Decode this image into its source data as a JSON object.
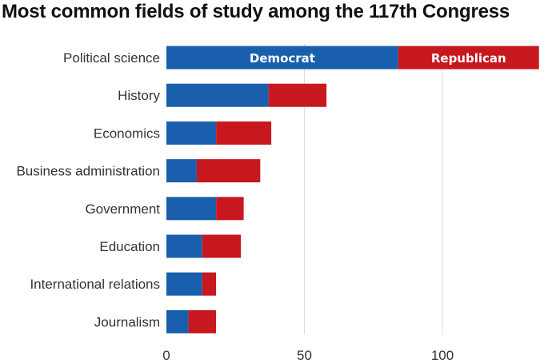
{
  "chart_data": {
    "type": "bar",
    "orientation": "horizontal",
    "stacked": true,
    "title": "Most common fields of study among the 117th Congress",
    "xlabel": "",
    "ylabel": "",
    "categories": [
      "Political science",
      "History",
      "Economics",
      "Business administration",
      "Government",
      "Education",
      "International relations",
      "Journalism"
    ],
    "series": [
      {
        "name": "Democrat",
        "color": "#1a5fad",
        "values": [
          84,
          37,
          18,
          11,
          18,
          13,
          13,
          8
        ]
      },
      {
        "name": "Republican",
        "color": "#c8181f",
        "values": [
          51,
          21,
          20,
          23,
          10,
          14,
          5,
          10
        ]
      }
    ],
    "xticks": [
      0,
      50,
      100
    ],
    "xtick_labels": [
      "0",
      "50",
      "100"
    ],
    "xlim": [
      0,
      135
    ],
    "grid": true,
    "legend": "inside-first-bar"
  }
}
